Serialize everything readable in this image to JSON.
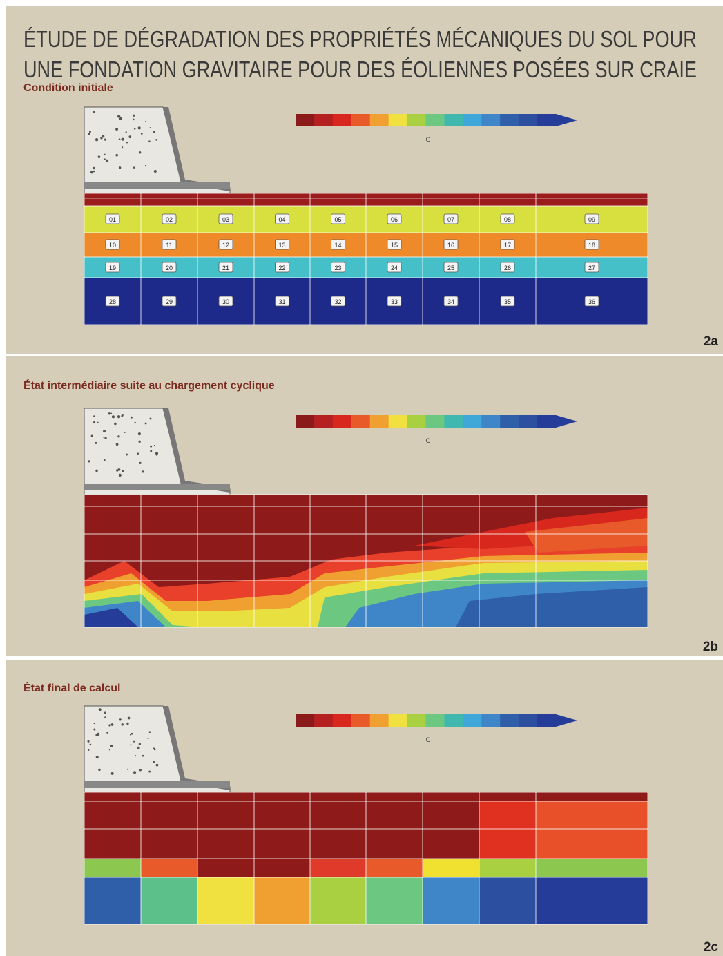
{
  "header": {
    "title_lines": [
      "ÉTUDE DE DÉGRADATION DES PROPRIÉTÉS MÉCANIQUES DU SOL POUR",
      "UNE FONDATION GRAVITAIRE POUR DES ÉOLIENNES POSÉES SUR CRAIE"
    ]
  },
  "panels": [
    {
      "subtitle": "Condition initiale",
      "label": "2a",
      "legend_label": "G",
      "cell_labels": [
        "01",
        "02",
        "03",
        "04",
        "05",
        "06",
        "07",
        "08",
        "09",
        "10",
        "11",
        "12",
        "13",
        "14",
        "15",
        "16",
        "17",
        "18",
        "19",
        "20",
        "21",
        "22",
        "23",
        "24",
        "25",
        "26",
        "27",
        "28",
        "29",
        "30",
        "31",
        "32",
        "33",
        "34",
        "35",
        "36"
      ]
    },
    {
      "subtitle": "État intermédiaire suite au chargement cyclique",
      "label": "2b",
      "legend_label": "G"
    },
    {
      "subtitle": "État final de calcul",
      "label": "2c",
      "legend_label": "G"
    }
  ]
}
